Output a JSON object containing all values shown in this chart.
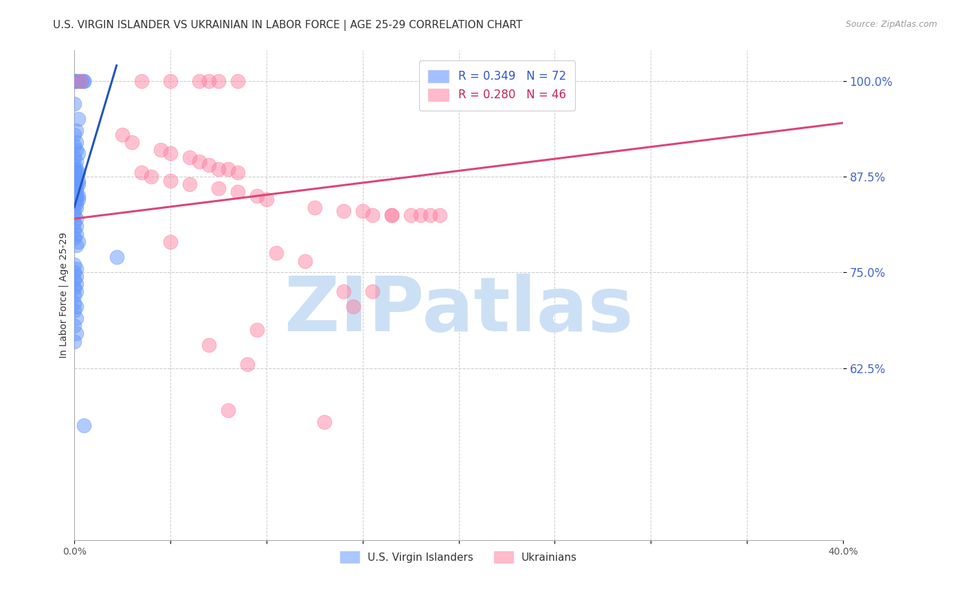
{
  "title": "U.S. VIRGIN ISLANDER VS UKRAINIAN IN LABOR FORCE | AGE 25-29 CORRELATION CHART",
  "source": "Source: ZipAtlas.com",
  "ylabel": "In Labor Force | Age 25-29",
  "xtick_labels": [
    "0.0%",
    "",
    "",
    "",
    "",
    "",
    "",
    "",
    "40.0%"
  ],
  "xtick_vals": [
    0.0,
    5.0,
    10.0,
    15.0,
    20.0,
    25.0,
    30.0,
    35.0,
    40.0
  ],
  "ytick_labels": [
    "62.5%",
    "75.0%",
    "87.5%",
    "100.0%"
  ],
  "ytick_vals": [
    62.5,
    75.0,
    87.5,
    100.0
  ],
  "xmin": 0.0,
  "xmax": 40.0,
  "ymin": 40.0,
  "ymax": 104.0,
  "watermark": "ZIPatlas",
  "watermark_color": "#cce0f5",
  "blue_color": "#6699ff",
  "pink_color": "#ff7799",
  "blue_scatter_x": [
    0.0,
    0.0,
    0.5,
    0.5,
    0.2,
    0.1,
    0.3,
    0.4,
    0.1,
    0.0,
    0.2,
    0.1,
    0.0,
    0.1,
    0.0,
    0.1,
    0.2,
    0.0,
    0.1,
    0.0,
    0.1,
    0.0,
    0.1,
    0.2,
    0.0,
    0.1,
    0.0,
    0.2,
    0.1,
    0.0,
    0.2,
    0.1,
    0.0,
    0.1,
    0.0,
    0.2,
    0.1,
    0.0,
    0.1,
    0.0,
    0.2,
    0.1,
    0.0,
    0.1,
    0.0,
    0.0,
    0.1,
    0.0,
    0.1,
    0.0,
    0.1,
    0.0,
    0.2,
    0.1,
    2.2,
    0.0,
    0.1,
    0.0,
    0.1,
    0.0,
    0.1,
    0.0,
    0.1,
    0.0,
    0.0,
    0.1,
    0.0,
    0.1,
    0.0,
    0.1,
    0.0,
    0.5
  ],
  "blue_scatter_y": [
    100.0,
    100.0,
    100.0,
    100.0,
    100.0,
    100.0,
    100.0,
    100.0,
    100.0,
    97.0,
    95.0,
    93.5,
    93.0,
    92.0,
    91.5,
    91.0,
    90.5,
    90.0,
    89.5,
    89.0,
    88.5,
    88.5,
    88.0,
    88.0,
    87.5,
    87.5,
    87.0,
    87.0,
    86.5,
    86.5,
    86.5,
    86.0,
    86.0,
    85.5,
    85.5,
    85.0,
    85.0,
    85.0,
    84.5,
    84.5,
    84.5,
    84.0,
    84.0,
    83.5,
    83.0,
    82.5,
    82.0,
    81.5,
    81.0,
    80.5,
    80.0,
    79.5,
    79.0,
    78.5,
    77.0,
    76.0,
    75.5,
    75.0,
    74.5,
    74.0,
    73.5,
    73.0,
    72.5,
    72.0,
    71.0,
    70.5,
    70.0,
    69.0,
    68.0,
    67.0,
    66.0,
    55.0
  ],
  "pink_scatter_x": [
    0.3,
    3.5,
    5.0,
    6.5,
    7.0,
    7.5,
    8.5,
    2.5,
    3.0,
    4.5,
    5.0,
    6.0,
    6.5,
    7.0,
    7.5,
    8.0,
    8.5,
    3.5,
    4.0,
    5.0,
    6.0,
    7.5,
    8.5,
    9.5,
    10.0,
    12.5,
    14.0,
    15.0,
    15.5,
    16.5,
    16.5,
    17.5,
    18.0,
    18.5,
    19.0,
    5.0,
    10.5,
    12.0,
    14.0,
    14.5,
    15.5,
    9.5,
    7.0,
    9.0,
    8.0,
    13.0
  ],
  "pink_scatter_y": [
    100.0,
    100.0,
    100.0,
    100.0,
    100.0,
    100.0,
    100.0,
    93.0,
    92.0,
    91.0,
    90.5,
    90.0,
    89.5,
    89.0,
    88.5,
    88.5,
    88.0,
    88.0,
    87.5,
    87.0,
    86.5,
    86.0,
    85.5,
    85.0,
    84.5,
    83.5,
    83.0,
    83.0,
    82.5,
    82.5,
    82.5,
    82.5,
    82.5,
    82.5,
    82.5,
    79.0,
    77.5,
    76.5,
    72.5,
    70.5,
    72.5,
    67.5,
    65.5,
    63.0,
    57.0,
    55.5
  ],
  "blue_trendline_x": [
    0.0,
    2.2
  ],
  "blue_trendline_y": [
    83.5,
    102.0
  ],
  "pink_trendline_x": [
    0.0,
    40.0
  ],
  "pink_trendline_y": [
    82.0,
    94.5
  ],
  "title_fontsize": 11,
  "axis_label_fontsize": 10,
  "tick_fontsize": 10,
  "legend_fontsize": 12,
  "bottom_legend_labels": [
    "U.S. Virgin Islanders",
    "Ukrainians"
  ]
}
